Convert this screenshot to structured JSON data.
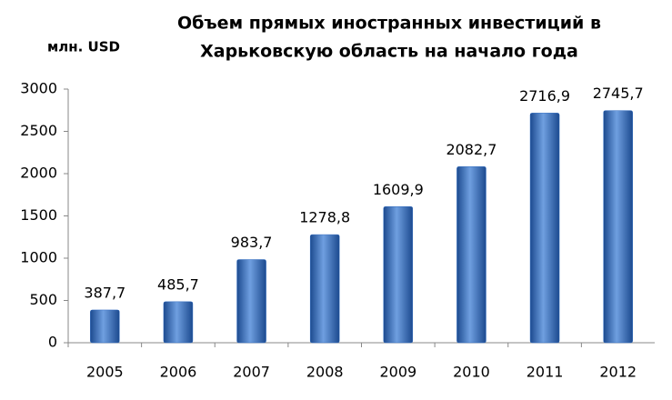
{
  "chart_data": {
    "type": "bar",
    "title": [
      "Объем прямых иностранных инвестиций в",
      "Харьковскую область на начало года"
    ],
    "y_label": "млн. USD",
    "categories": [
      "2005",
      "2006",
      "2007",
      "2008",
      "2009",
      "2010",
      "2011",
      "2012"
    ],
    "values": [
      387.7,
      485.7,
      983.7,
      1278.8,
      1609.9,
      2082.7,
      2716.9,
      2745.7
    ],
    "value_labels": [
      "387,7",
      "485,7",
      "983,7",
      "1278,8",
      "1609,9",
      "2082,7",
      "2716,9",
      "2745,7"
    ],
    "color": "#2f6bc0",
    "ylim": [
      0,
      3000
    ],
    "yticks": [
      0,
      500,
      1000,
      1500,
      2000,
      2500,
      3000
    ],
    "grid": false
  }
}
